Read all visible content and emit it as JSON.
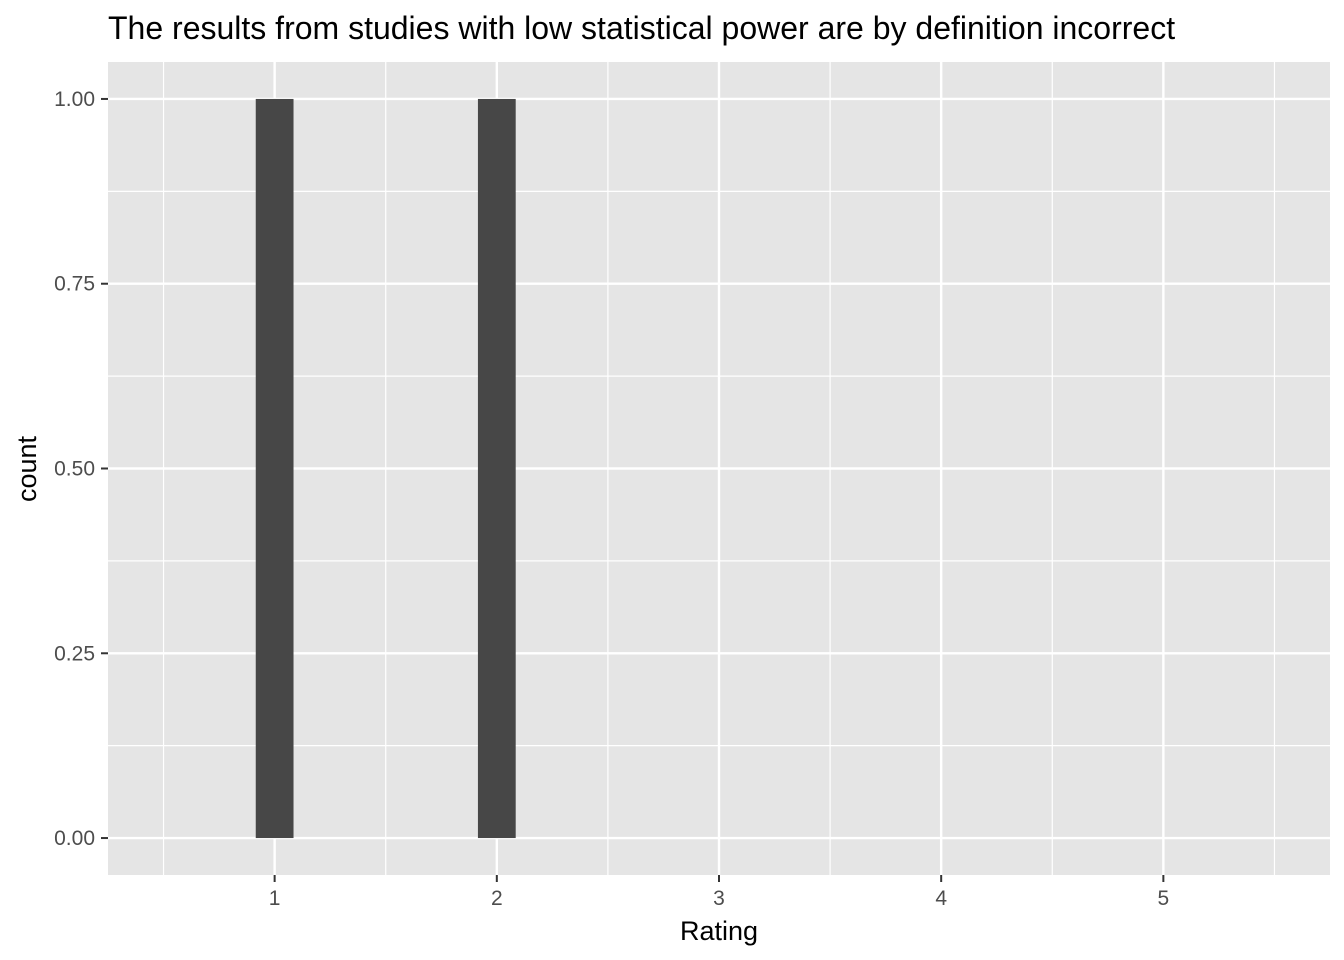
{
  "chart_data": {
    "type": "bar",
    "title": "The results from studies with low statistical power are by definition incorrect",
    "xlabel": "Rating",
    "ylabel": "count",
    "x_ticks": [
      "1",
      "2",
      "3",
      "4",
      "5"
    ],
    "y_ticks": [
      "0.00",
      "0.25",
      "0.50",
      "0.75",
      "1.00"
    ],
    "xlim": [
      0.25,
      5.75
    ],
    "ylim": [
      -0.05,
      1.05
    ],
    "grid": true,
    "bar_color": "#474747",
    "panel_color": "#e5e5e5",
    "grid_color": "#ffffff",
    "bars": [
      {
        "x": 1,
        "value": 1
      },
      {
        "x": 2,
        "value": 1
      }
    ]
  }
}
